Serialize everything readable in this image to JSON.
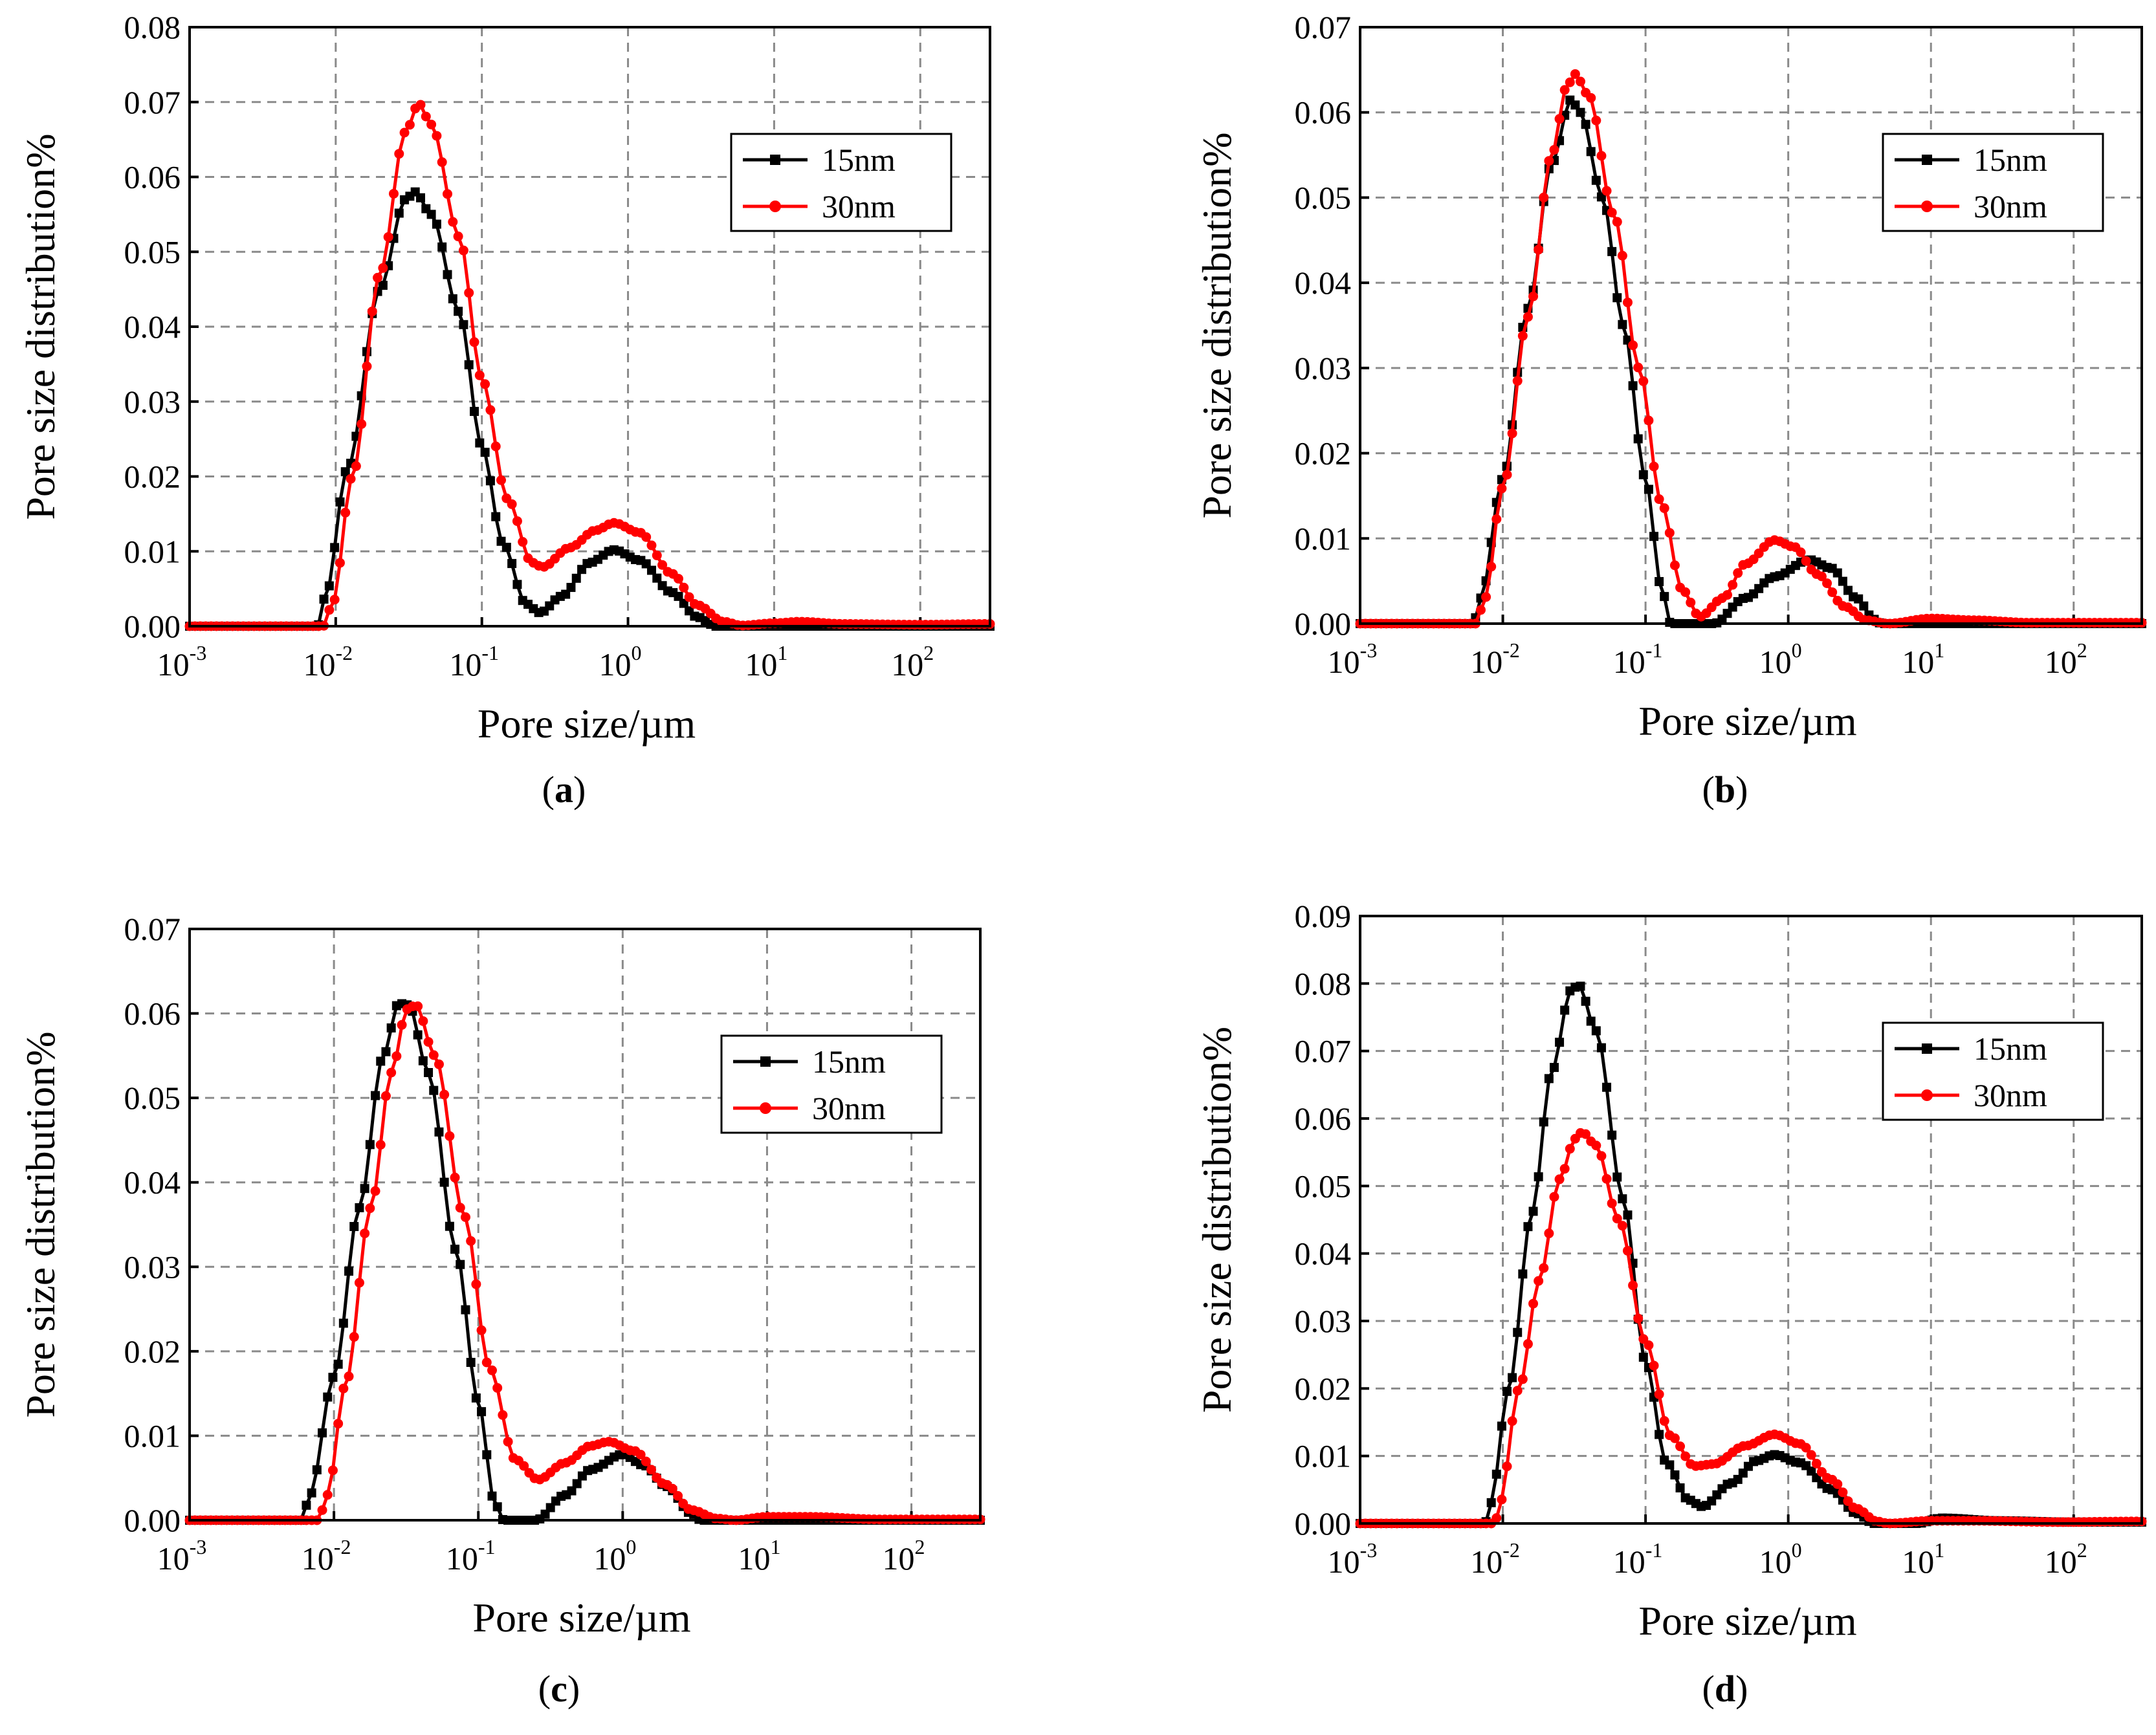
{
  "figure": {
    "panels_label_prefix": "(",
    "panels_label_suffix": ")"
  },
  "colors": {
    "series_15nm": "#000000",
    "series_30nm": "#ff0000",
    "grid": "#8a8a8a",
    "background": "#ffffff"
  },
  "chart_data": [
    {
      "panel": "a",
      "type": "line",
      "xlabel": "Pore size/µm",
      "ylabel": "Pore size distribution%",
      "xscale": "log",
      "xlim": [
        0.001,
        300
      ],
      "ylim": [
        0,
        0.08
      ],
      "yticks": [
        "0.00",
        "0.01",
        "0.02",
        "0.03",
        "0.04",
        "0.05",
        "0.06",
        "0.07",
        "0.08"
      ],
      "xticks": [
        {
          "base": "10",
          "exp": "-3"
        },
        {
          "base": "10",
          "exp": "-2"
        },
        {
          "base": "10",
          "exp": "-1"
        },
        {
          "base": "10",
          "exp": "0"
        },
        {
          "base": "10",
          "exp": "1"
        },
        {
          "base": "10",
          "exp": "2"
        }
      ],
      "legend": {
        "position": "top-right"
      },
      "series": [
        {
          "name": "15nm",
          "marker": "square",
          "color": "#000000",
          "points": [
            [
              0.001,
              0
            ],
            [
              0.0075,
              0
            ],
            [
              0.0085,
              0.004
            ],
            [
              0.012,
              0.021
            ],
            [
              0.02,
              0.045
            ],
            [
              0.03,
              0.057
            ],
            [
              0.035,
              0.058
            ],
            [
              0.045,
              0.055
            ],
            [
              0.07,
              0.042
            ],
            [
              0.1,
              0.024
            ],
            [
              0.14,
              0.011
            ],
            [
              0.2,
              0.003
            ],
            [
              0.25,
              0.0018
            ],
            [
              0.35,
              0.004
            ],
            [
              0.55,
              0.0085
            ],
            [
              0.8,
              0.0102
            ],
            [
              1.2,
              0.0088
            ],
            [
              2.0,
              0.0045
            ],
            [
              3.0,
              0.0012
            ],
            [
              4.0,
              0.0
            ],
            [
              300,
              0.0
            ]
          ]
        },
        {
          "name": "30nm",
          "marker": "circle",
          "color": "#ff0000",
          "points": [
            [
              0.001,
              0
            ],
            [
              0.0082,
              0
            ],
            [
              0.0095,
              0.003
            ],
            [
              0.013,
              0.02
            ],
            [
              0.02,
              0.047
            ],
            [
              0.03,
              0.066
            ],
            [
              0.037,
              0.0698
            ],
            [
              0.045,
              0.067
            ],
            [
              0.07,
              0.052
            ],
            [
              0.1,
              0.033
            ],
            [
              0.15,
              0.017
            ],
            [
              0.22,
              0.0085
            ],
            [
              0.26,
              0.0079
            ],
            [
              0.4,
              0.0105
            ],
            [
              0.6,
              0.0128
            ],
            [
              0.8,
              0.0138
            ],
            [
              1.2,
              0.0125
            ],
            [
              2.0,
              0.007
            ],
            [
              3.0,
              0.0028
            ],
            [
              4.5,
              0.0006
            ],
            [
              6,
              0.0001
            ],
            [
              10,
              0.0004
            ],
            [
              15,
              0.0006
            ],
            [
              30,
              0.0003
            ],
            [
              100,
              0.0002
            ],
            [
              300,
              0.0003
            ]
          ]
        }
      ]
    },
    {
      "panel": "b",
      "type": "line",
      "xlabel": "Pore size/µm",
      "ylabel": "Pore size distribution%",
      "xscale": "log",
      "xlim": [
        0.001,
        300
      ],
      "ylim": [
        0,
        0.07
      ],
      "yticks": [
        "0.00",
        "0.01",
        "0.02",
        "0.03",
        "0.04",
        "0.05",
        "0.06",
        "0.07"
      ],
      "xticks": [
        {
          "base": "10",
          "exp": "-3"
        },
        {
          "base": "10",
          "exp": "-2"
        },
        {
          "base": "10",
          "exp": "-1"
        },
        {
          "base": "10",
          "exp": "0"
        },
        {
          "base": "10",
          "exp": "1"
        },
        {
          "base": "10",
          "exp": "2"
        }
      ],
      "legend": {
        "position": "top-right"
      },
      "series": [
        {
          "name": "15nm",
          "marker": "square",
          "color": "#000000",
          "points": [
            [
              0.001,
              0
            ],
            [
              0.0062,
              0
            ],
            [
              0.007,
              0.003
            ],
            [
              0.01,
              0.017
            ],
            [
              0.015,
              0.037
            ],
            [
              0.022,
              0.054
            ],
            [
              0.03,
              0.0615
            ],
            [
              0.035,
              0.06
            ],
            [
              0.05,
              0.05
            ],
            [
              0.07,
              0.035
            ],
            [
              0.1,
              0.017
            ],
            [
              0.13,
              0.004
            ],
            [
              0.15,
              0.0
            ],
            [
              0.3,
              0.0
            ],
            [
              0.5,
              0.003
            ],
            [
              0.8,
              0.0055
            ],
            [
              1.4,
              0.0075
            ],
            [
              2.0,
              0.0065
            ],
            [
              3.0,
              0.003
            ],
            [
              4.0,
              0.0005
            ],
            [
              4.5,
              0.0
            ],
            [
              300,
              0.0
            ]
          ]
        },
        {
          "name": "30nm",
          "marker": "circle",
          "color": "#ff0000",
          "points": [
            [
              0.001,
              0
            ],
            [
              0.0065,
              0
            ],
            [
              0.0075,
              0.003
            ],
            [
              0.01,
              0.016
            ],
            [
              0.015,
              0.036
            ],
            [
              0.022,
              0.055
            ],
            [
              0.028,
              0.063
            ],
            [
              0.032,
              0.0645
            ],
            [
              0.04,
              0.062
            ],
            [
              0.06,
              0.048
            ],
            [
              0.09,
              0.03
            ],
            [
              0.13,
              0.014
            ],
            [
              0.18,
              0.004
            ],
            [
              0.24,
              0.0008
            ],
            [
              0.35,
              0.003
            ],
            [
              0.5,
              0.007
            ],
            [
              0.8,
              0.0098
            ],
            [
              1.1,
              0.009
            ],
            [
              1.6,
              0.0058
            ],
            [
              2.5,
              0.002
            ],
            [
              3.5,
              0.0004
            ],
            [
              5,
              0.0
            ],
            [
              10,
              0.0006
            ],
            [
              20,
              0.0004
            ],
            [
              50,
              0.0001
            ],
            [
              300,
              0.0001
            ]
          ]
        }
      ]
    },
    {
      "panel": "c",
      "type": "line",
      "xlabel": "Pore size/µm",
      "ylabel": "Pore size distribution%",
      "xscale": "log",
      "xlim": [
        0.001,
        300
      ],
      "ylim": [
        0,
        0.07
      ],
      "yticks": [
        "0.00",
        "0.01",
        "0.02",
        "0.03",
        "0.04",
        "0.05",
        "0.06",
        "0.07"
      ],
      "xticks": [
        {
          "base": "10",
          "exp": "-3"
        },
        {
          "base": "10",
          "exp": "-2"
        },
        {
          "base": "10",
          "exp": "-1"
        },
        {
          "base": "10",
          "exp": "0"
        },
        {
          "base": "10",
          "exp": "1"
        },
        {
          "base": "10",
          "exp": "2"
        }
      ],
      "legend": {
        "position": "top-right"
      },
      "series": [
        {
          "name": "15nm",
          "marker": "square",
          "color": "#000000",
          "points": [
            [
              0.001,
              0
            ],
            [
              0.006,
              0
            ],
            [
              0.0068,
              0.003
            ],
            [
              0.01,
              0.017
            ],
            [
              0.015,
              0.037
            ],
            [
              0.022,
              0.055
            ],
            [
              0.028,
              0.0612
            ],
            [
              0.033,
              0.061
            ],
            [
              0.045,
              0.053
            ],
            [
              0.07,
              0.032
            ],
            [
              0.1,
              0.014
            ],
            [
              0.13,
              0.002
            ],
            [
              0.15,
              0.0
            ],
            [
              0.25,
              0.0
            ],
            [
              0.4,
              0.003
            ],
            [
              0.6,
              0.006
            ],
            [
              1.0,
              0.0078
            ],
            [
              1.4,
              0.0065
            ],
            [
              2.0,
              0.004
            ],
            [
              3.0,
              0.0008
            ],
            [
              3.5,
              0.0
            ],
            [
              300,
              0.0
            ]
          ]
        },
        {
          "name": "30nm",
          "marker": "circle",
          "color": "#ff0000",
          "points": [
            [
              0.001,
              0
            ],
            [
              0.0078,
              0
            ],
            [
              0.009,
              0.003
            ],
            [
              0.012,
              0.016
            ],
            [
              0.018,
              0.037
            ],
            [
              0.025,
              0.053
            ],
            [
              0.032,
              0.0605
            ],
            [
              0.037,
              0.061
            ],
            [
              0.05,
              0.055
            ],
            [
              0.08,
              0.036
            ],
            [
              0.12,
              0.018
            ],
            [
              0.18,
              0.0072
            ],
            [
              0.26,
              0.0048
            ],
            [
              0.4,
              0.0068
            ],
            [
              0.6,
              0.0088
            ],
            [
              0.8,
              0.0093
            ],
            [
              1.2,
              0.0082
            ],
            [
              2.0,
              0.0042
            ],
            [
              3.0,
              0.0012
            ],
            [
              4.5,
              0.0002
            ],
            [
              6,
              0.0
            ],
            [
              10,
              0.0004
            ],
            [
              20,
              0.0004
            ],
            [
              60,
              0.0001
            ],
            [
              300,
              0.0001
            ]
          ]
        }
      ]
    },
    {
      "panel": "d",
      "type": "line",
      "xlabel": "Pore size/µm",
      "ylabel": "Pore size distribution%",
      "xscale": "log",
      "xlim": [
        0.001,
        300
      ],
      "ylim": [
        0,
        0.09
      ],
      "yticks": [
        "0.00",
        "0.01",
        "0.02",
        "0.03",
        "0.04",
        "0.05",
        "0.06",
        "0.07",
        "0.08",
        "0.09"
      ],
      "xticks": [
        {
          "base": "10",
          "exp": "-3"
        },
        {
          "base": "10",
          "exp": "-2"
        },
        {
          "base": "10",
          "exp": "-1"
        },
        {
          "base": "10",
          "exp": "0"
        },
        {
          "base": "10",
          "exp": "1"
        },
        {
          "base": "10",
          "exp": "2"
        }
      ],
      "legend": {
        "position": "top-right"
      },
      "series": [
        {
          "name": "15nm",
          "marker": "square",
          "color": "#000000",
          "points": [
            [
              0.001,
              0
            ],
            [
              0.0075,
              0
            ],
            [
              0.0082,
              0.003
            ],
            [
              0.011,
              0.02
            ],
            [
              0.016,
              0.046
            ],
            [
              0.022,
              0.067
            ],
            [
              0.03,
              0.079
            ],
            [
              0.034,
              0.0798
            ],
            [
              0.045,
              0.073
            ],
            [
              0.07,
              0.048
            ],
            [
              0.1,
              0.024
            ],
            [
              0.14,
              0.009
            ],
            [
              0.2,
              0.0035
            ],
            [
              0.25,
              0.0025
            ],
            [
              0.4,
              0.006
            ],
            [
              0.6,
              0.0093
            ],
            [
              0.8,
              0.0102
            ],
            [
              1.2,
              0.009
            ],
            [
              2.0,
              0.005
            ],
            [
              3.0,
              0.0015
            ],
            [
              4.0,
              0.0
            ],
            [
              8,
              0.0
            ],
            [
              12,
              0.0008
            ],
            [
              30,
              0.0004
            ],
            [
              100,
              0.0002
            ],
            [
              300,
              0.0002
            ]
          ]
        },
        {
          "name": "30nm",
          "marker": "circle",
          "color": "#ff0000",
          "points": [
            [
              0.001,
              0
            ],
            [
              0.0088,
              0
            ],
            [
              0.0095,
              0.003
            ],
            [
              0.013,
              0.02
            ],
            [
              0.018,
              0.036
            ],
            [
              0.025,
              0.051
            ],
            [
              0.032,
              0.057
            ],
            [
              0.036,
              0.058
            ],
            [
              0.045,
              0.056
            ],
            [
              0.065,
              0.045
            ],
            [
              0.1,
              0.027
            ],
            [
              0.15,
              0.013
            ],
            [
              0.22,
              0.0085
            ],
            [
              0.3,
              0.0088
            ],
            [
              0.5,
              0.0115
            ],
            [
              0.8,
              0.0132
            ],
            [
              1.2,
              0.0118
            ],
            [
              2.0,
              0.0065
            ],
            [
              3.0,
              0.0022
            ],
            [
              4.2,
              0.0003
            ],
            [
              5,
              0.0
            ],
            [
              10,
              0.0004
            ],
            [
              20,
              0.0004
            ],
            [
              80,
              0.0002
            ],
            [
              300,
              0.0003
            ]
          ]
        }
      ]
    }
  ]
}
